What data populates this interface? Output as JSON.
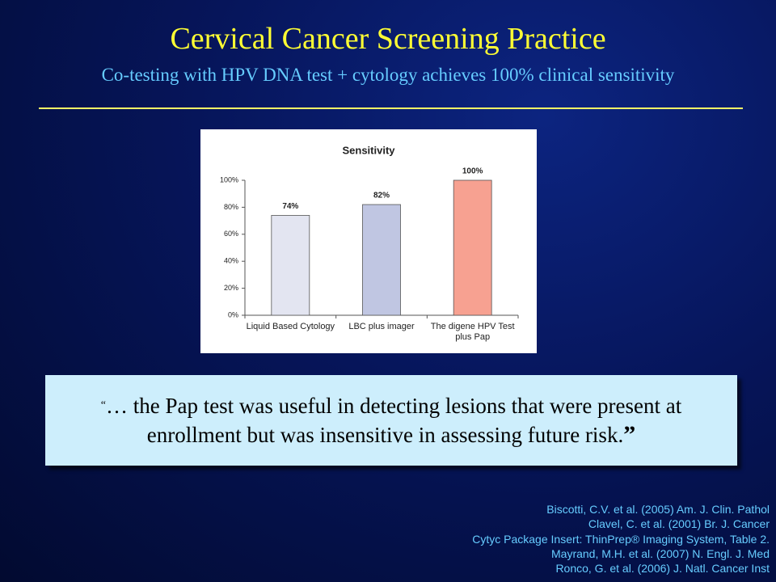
{
  "header": {
    "title": "Cervical Cancer Screening Practice",
    "subtitle": "Co-testing with HPV DNA test + cytology achieves 100% clinical sensitivity"
  },
  "chart_data": {
    "type": "bar",
    "title": "Sensitivity",
    "categories": [
      "Liquid Based Cytology",
      "LBC plus imager",
      "The digene HPV Test plus Pap"
    ],
    "values": [
      74,
      82,
      100
    ],
    "value_labels": [
      "74%",
      "82%",
      "100%"
    ],
    "colors": [
      "#e3e5f1",
      "#c0c6e2",
      "#f7a191"
    ],
    "ylim": [
      0,
      100
    ],
    "yticks": [
      {
        "value": 0,
        "label": "0%"
      },
      {
        "value": 20,
        "label": "20%"
      },
      {
        "value": 40,
        "label": "40%"
      },
      {
        "value": 60,
        "label": "60%"
      },
      {
        "value": 80,
        "label": "80%"
      },
      {
        "value": 100,
        "label": "100%"
      }
    ],
    "grid": false
  },
  "quote": {
    "open": "“",
    "text": "… the Pap test was useful in detecting lesions that were present at enrollment but was insensitive in assessing future risk.",
    "close": "”"
  },
  "references": [
    "Biscotti, C.V. et al. (2005) Am. J. Clin. Pathol",
    "Clavel, C. et al. (2001) Br. J. Cancer",
    "Cytyc Package Insert:  ThinPrep® Imaging System, Table 2.",
    "Mayrand, M.H. et al. (2007) N. Engl. J. Med",
    "Ronco, G. et al. (2006) J. Natl. Cancer Inst"
  ]
}
